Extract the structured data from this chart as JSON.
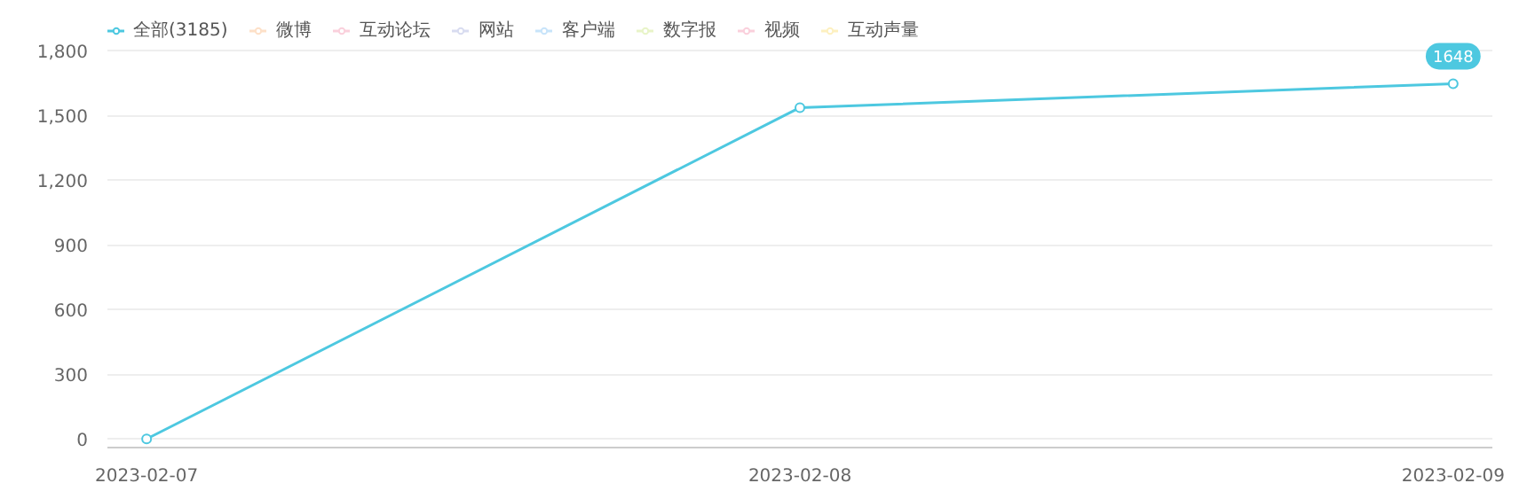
{
  "chart_data": {
    "type": "line",
    "categories": [
      "2023-02-07",
      "2023-02-08",
      "2023-02-09"
    ],
    "series": [
      {
        "name": "全部(3185)",
        "color": "#4dc8e0",
        "values": [
          0,
          1537,
          1648
        ],
        "value_labels": [
          null,
          null,
          "1648"
        ]
      },
      {
        "name": "微博",
        "color": "#fde0c8",
        "values": [
          null,
          null,
          null
        ]
      },
      {
        "name": "互动论坛",
        "color": "#fad0dc",
        "values": [
          null,
          null,
          null
        ]
      },
      {
        "name": "网站",
        "color": "#d8dcf0",
        "values": [
          null,
          null,
          null
        ]
      },
      {
        "name": "客户端",
        "color": "#c8e4fa",
        "values": [
          null,
          null,
          null
        ]
      },
      {
        "name": "数字报",
        "color": "#e8f4c8",
        "values": [
          null,
          null,
          null
        ]
      },
      {
        "name": "视频",
        "color": "#fad0dc",
        "values": [
          null,
          null,
          null
        ]
      },
      {
        "name": "互动声量",
        "color": "#fdf0c0",
        "values": [
          null,
          null,
          null
        ]
      }
    ],
    "ylim": [
      0,
      1800
    ],
    "yticks": [
      0,
      {
        "value": 300,
        "label": "300"
      },
      {
        "value": 600,
        "label": "600"
      },
      {
        "value": 900,
        "label": "900"
      },
      {
        "value": 1200,
        "label": "1,200"
      },
      {
        "value": 1500,
        "label": "1,500"
      },
      {
        "value": 1800,
        "label": "1,800"
      }
    ],
    "grid": "y",
    "legend": "top left",
    "marker": "circle",
    "line_style": "solid"
  }
}
